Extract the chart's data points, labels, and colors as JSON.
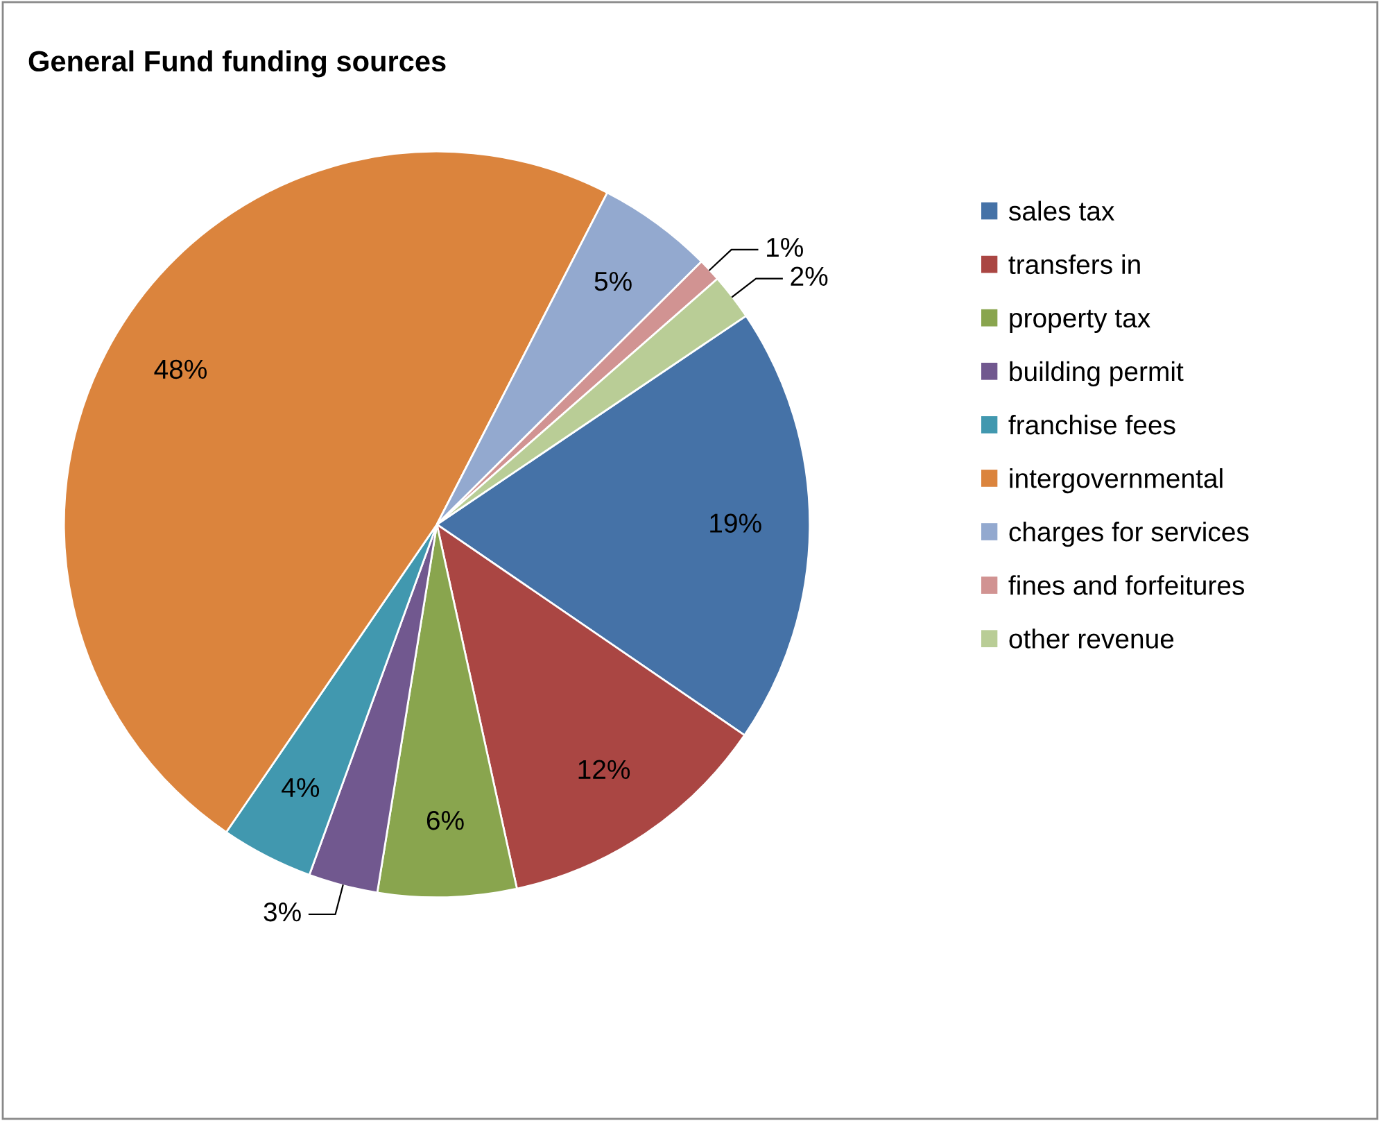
{
  "chart_data": {
    "type": "pie",
    "title": "General Fund funding sources",
    "categories": [
      "sales tax",
      "transfers in",
      "property tax",
      "building permit",
      "franchise fees",
      "intergovernmental",
      "charges for services",
      "fines and forfeitures",
      "other revenue"
    ],
    "values": [
      19,
      12,
      6,
      3,
      4,
      48,
      5,
      1,
      2
    ],
    "colors": [
      "#4572a7",
      "#aa4643",
      "#89a54e",
      "#71588f",
      "#4198af",
      "#db843d",
      "#93a9cf",
      "#d19392",
      "#b9cd96"
    ],
    "value_labels": [
      "19%",
      "12%",
      "6%",
      "3%",
      "4%",
      "48%",
      "5%",
      "1%",
      "2%"
    ],
    "legend": "right"
  }
}
